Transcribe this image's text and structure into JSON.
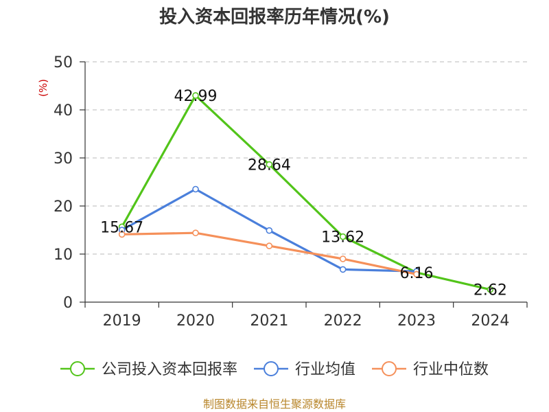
{
  "chart_data": {
    "type": "line",
    "title": "投入资本回报率历年情况(%)",
    "ylabel": "(%)",
    "categories": [
      "2019",
      "2020",
      "2021",
      "2022",
      "2023",
      "2024"
    ],
    "ylim": [
      0,
      50
    ],
    "yticks": [
      0,
      10,
      20,
      30,
      40,
      50
    ],
    "grid": true,
    "legend_position": "bottom",
    "series": [
      {
        "name": "公司投入资本回报率",
        "color": "#52c41a",
        "values": [
          15.67,
          42.99,
          28.64,
          13.62,
          6.16,
          2.62
        ],
        "labels": [
          "15.67",
          "42.99",
          "28.64",
          "13.62",
          "6.16",
          "2.62"
        ]
      },
      {
        "name": "行业均值",
        "color": "#4a7fdb",
        "values": [
          15.0,
          23.5,
          14.9,
          6.8,
          6.4,
          null
        ]
      },
      {
        "name": "行业中位数",
        "color": "#f5905a",
        "values": [
          14.1,
          14.4,
          11.7,
          9.0,
          5.8,
          null
        ]
      }
    ]
  },
  "source": "制图数据来自恒生聚源数据库"
}
